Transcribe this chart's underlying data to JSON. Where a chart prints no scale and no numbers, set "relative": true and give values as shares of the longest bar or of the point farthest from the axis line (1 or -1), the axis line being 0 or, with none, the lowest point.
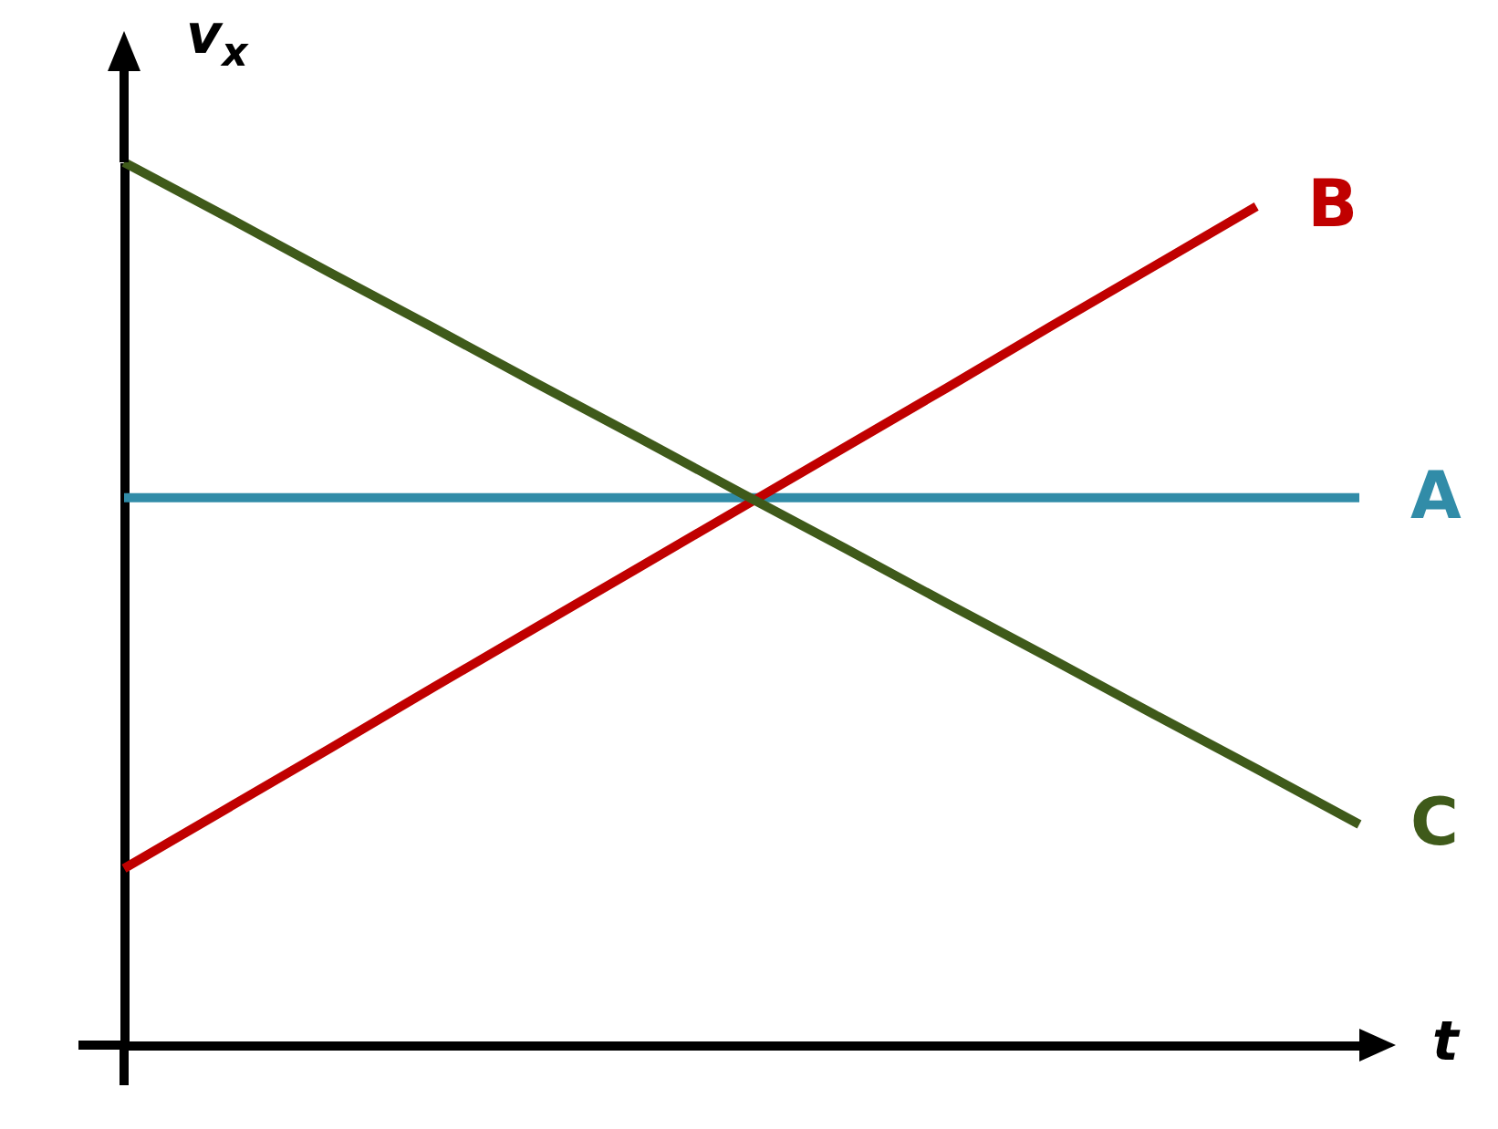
{
  "chart_data": {
    "type": "line",
    "relative": true,
    "xlabel": "t",
    "ylabel": "v$_{x}$",
    "categories": [
      null,
      null,
      null,
      null,
      null,
      null,
      null,
      null,
      null,
      null,
      null,
      null,
      null
    ],
    "series": [
      {
        "name": "A",
        "color": "#318ca8",
        "values": [
          0.62,
          0.62,
          0.62,
          0.62,
          0.62,
          0.62,
          0.62,
          0.62,
          0.62,
          0.62,
          0.62,
          0.62,
          0.62
        ]
      },
      {
        "name": "B",
        "color": "#c00000",
        "values": [
          0.2,
          0.268,
          0.336,
          0.405,
          0.473,
          0.541,
          0.609,
          0.677,
          0.745,
          0.814,
          0.882,
          0.95,
          null
        ]
      },
      {
        "name": "C",
        "color": "#3f5a1a",
        "values": [
          1,
          0.938,
          0.875,
          0.813,
          0.75,
          0.688,
          0.625,
          0.563,
          0.5,
          0.438,
          0.375,
          0.313,
          0.25
        ]
      }
    ]
  }
}
